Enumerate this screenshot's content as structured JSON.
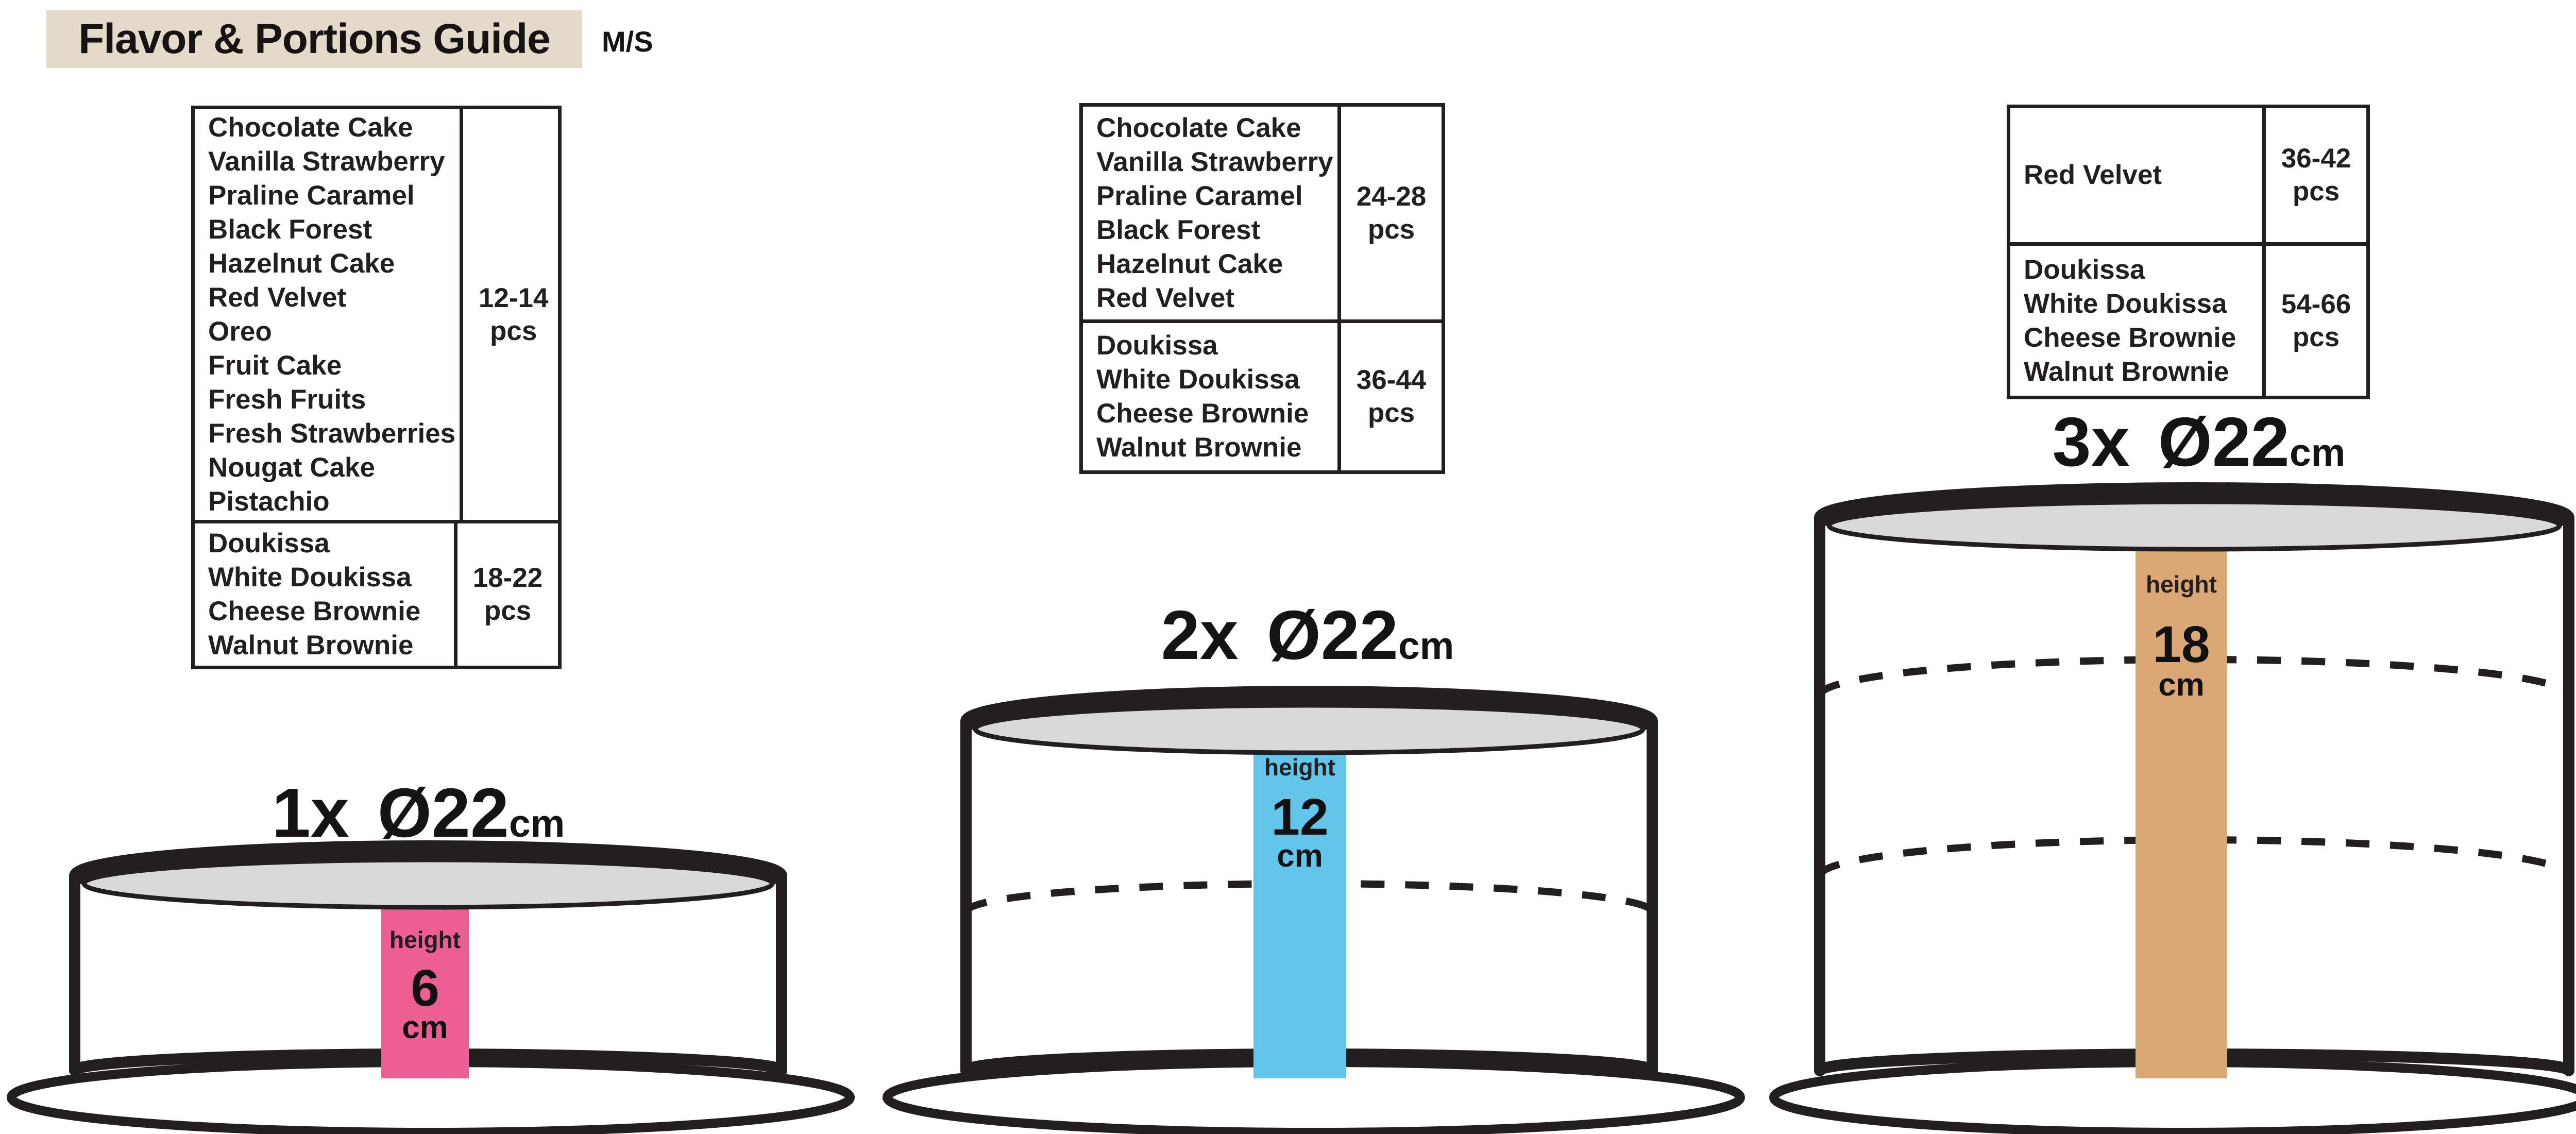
{
  "title": {
    "text": "Flavor & Portions Guide",
    "badge": "M/S",
    "banner_color": "#e3dac9"
  },
  "colors": {
    "ink": "#231f20",
    "pink": "#ed5e94",
    "blue": "#64c5eb",
    "tan": "#dba875",
    "cake_top_gray": "#d9d9d9",
    "banner_beige": "#e3dac9"
  },
  "cakes": [
    {
      "label": {
        "count": "1x",
        "diameter": "Ø22",
        "unit": "cm"
      },
      "tiers": 1,
      "bar_color": "#ed5e94",
      "height": {
        "label": "height",
        "value": "6",
        "unit": "cm"
      },
      "table": {
        "rows": [
          {
            "flavors": [
              "Chocolate Cake",
              "Vanilla Strawberry",
              "Praline Caramel",
              "Black Forest",
              "Hazelnut Cake",
              "Red Velvet",
              "Oreo",
              "Fruit Cake",
              "Fresh Fruits",
              "Fresh Strawberries",
              "Nougat Cake",
              "Pistachio"
            ],
            "portions": "12-14",
            "unit": "pcs"
          },
          {
            "flavors": [
              "Doukissa",
              "White Doukissa",
              "Cheese Brownie",
              "Walnut Brownie"
            ],
            "portions": "18-22",
            "unit": "pcs"
          }
        ]
      }
    },
    {
      "label": {
        "count": "2x",
        "diameter": "Ø22",
        "unit": "cm"
      },
      "tiers": 2,
      "bar_color": "#64c5eb",
      "height": {
        "label": "height",
        "value": "12",
        "unit": "cm"
      },
      "table": {
        "rows": [
          {
            "flavors": [
              "Chocolate Cake",
              "Vanilla Strawberry",
              "Praline Caramel",
              "Black Forest",
              "Hazelnut Cake",
              "Red Velvet"
            ],
            "portions": "24-28",
            "unit": "pcs"
          },
          {
            "flavors": [
              "Doukissa",
              "White Doukissa",
              "Cheese Brownie",
              "Walnut Brownie"
            ],
            "portions": "36-44",
            "unit": "pcs"
          }
        ]
      }
    },
    {
      "label": {
        "count": "3x",
        "diameter": "Ø22",
        "unit": "cm"
      },
      "tiers": 3,
      "bar_color": "#dba875",
      "height": {
        "label": "height",
        "value": "18",
        "unit": "cm"
      },
      "table": {
        "rows": [
          {
            "flavors": [
              "Red Velvet"
            ],
            "portions": "36-42",
            "unit": "pcs"
          },
          {
            "flavors": [
              "Doukissa",
              "White Doukissa",
              "Cheese Brownie",
              "Walnut Brownie"
            ],
            "portions": "54-66",
            "unit": "pcs"
          }
        ]
      }
    }
  ]
}
